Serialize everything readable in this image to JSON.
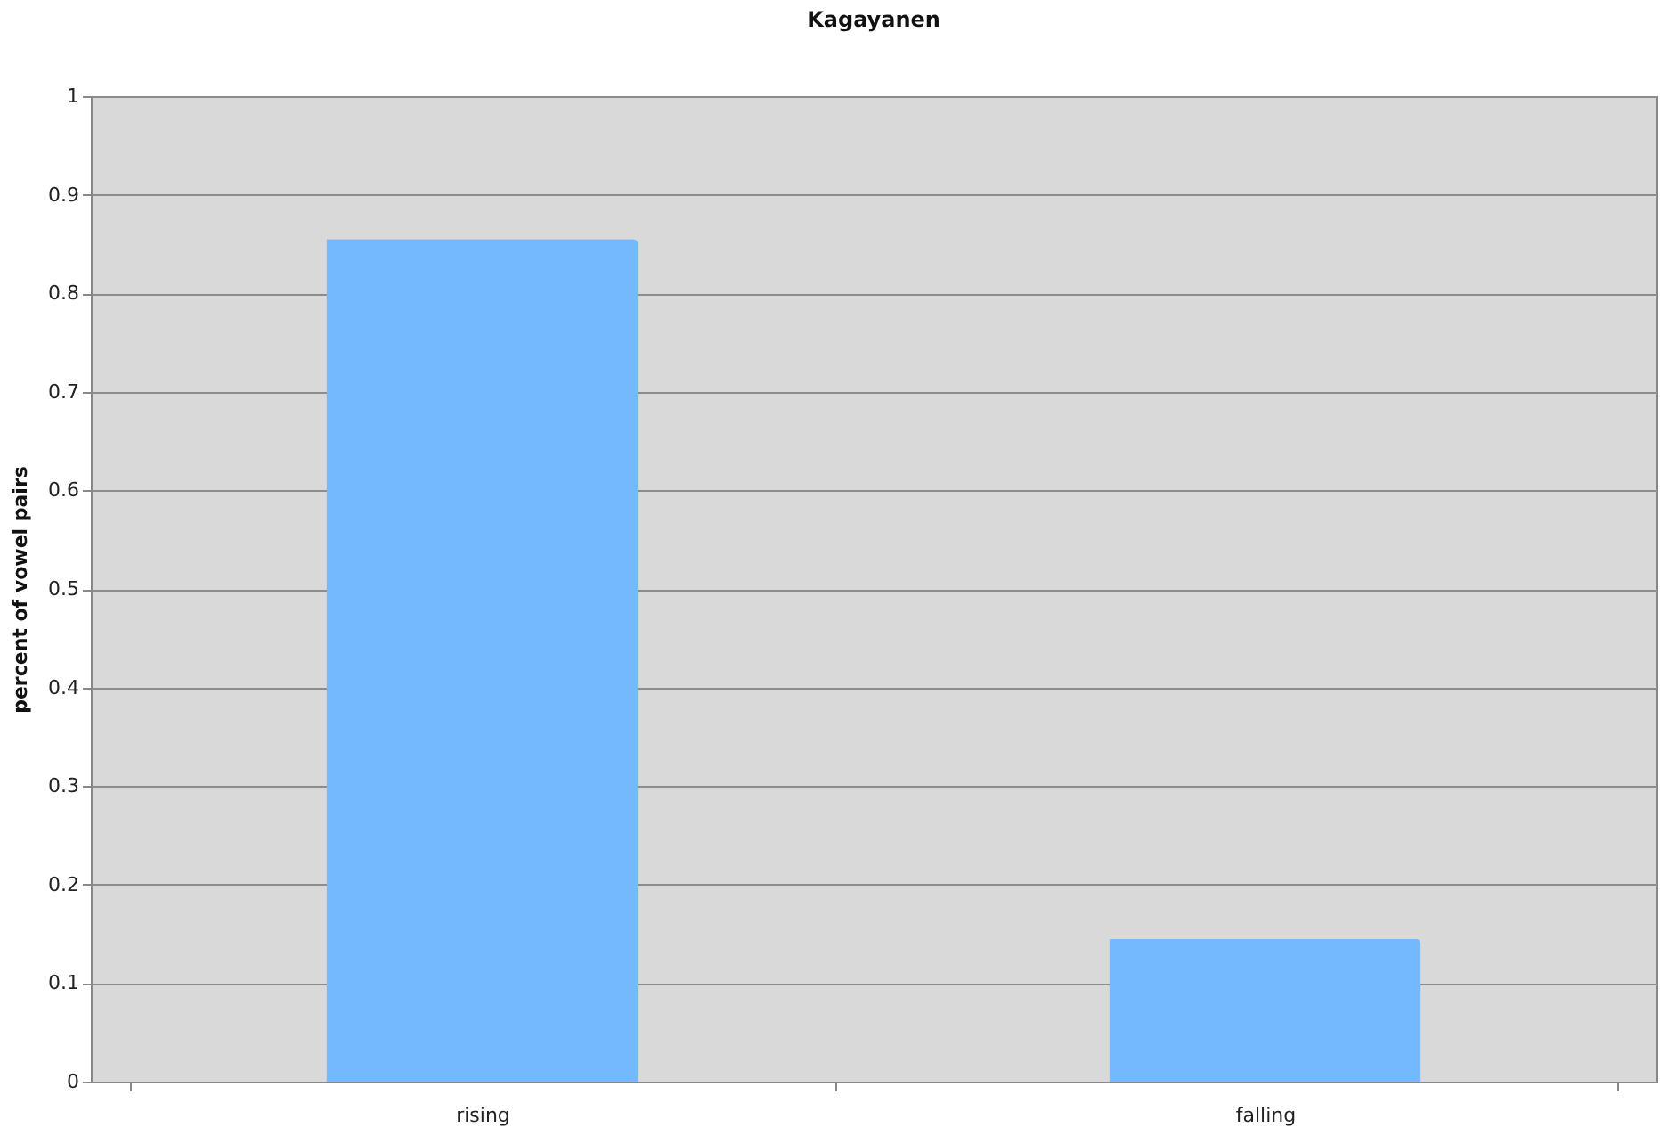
{
  "chart_data": {
    "type": "bar",
    "title": "Kagayanen",
    "ylabel": "percent of vowel pairs",
    "categories": [
      "rising",
      "falling"
    ],
    "values": [
      0.855,
      0.145
    ],
    "color": "#74b8fe",
    "ylim": [
      0,
      1
    ],
    "yticks": [
      0,
      0.1,
      0.2,
      0.3,
      0.4,
      0.5,
      0.6,
      0.7,
      0.8,
      0.9,
      1
    ],
    "grid": "y"
  }
}
